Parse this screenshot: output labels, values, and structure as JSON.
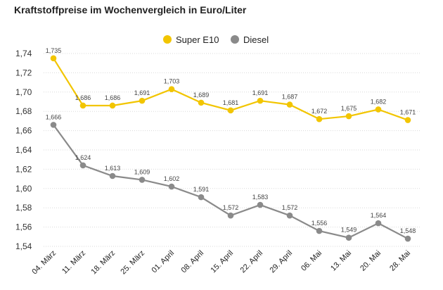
{
  "chart_data": {
    "type": "line",
    "title": "Kraftstoffpreise im Wochenvergleich in Euro/Liter",
    "categories": [
      "04. März",
      "11. März",
      "18. März",
      "25. März",
      "01. April",
      "08. April",
      "15. April",
      "22. April",
      "29. April",
      "06. Mai",
      "13. Mai",
      "20. Mai",
      "28. Mai"
    ],
    "series": [
      {
        "name": "Super E10",
        "color": "#f2c500",
        "values": [
          1.735,
          1.686,
          1.686,
          1.691,
          1.703,
          1.689,
          1.681,
          1.691,
          1.687,
          1.672,
          1.675,
          1.682,
          1.671
        ],
        "labels": [
          "1,735",
          "1,686",
          "1,686",
          "1,691",
          "1,703",
          "1,689",
          "1,681",
          "1,691",
          "1,687",
          "1,672",
          "1,675",
          "1,682",
          "1,671"
        ]
      },
      {
        "name": "Diesel",
        "color": "#8a8a8a",
        "values": [
          1.666,
          1.624,
          1.613,
          1.609,
          1.602,
          1.591,
          1.572,
          1.583,
          1.572,
          1.556,
          1.549,
          1.564,
          1.548
        ],
        "labels": [
          "1,666",
          "1,624",
          "1,613",
          "1,609",
          "1,602",
          "1,591",
          "1,572",
          "1,583",
          "1,572",
          "1,556",
          "1,549",
          "1,564",
          "1,548"
        ]
      }
    ],
    "yticks": [
      1.54,
      1.56,
      1.58,
      1.6,
      1.62,
      1.64,
      1.66,
      1.68,
      1.7,
      1.72,
      1.74
    ],
    "ytick_labels": [
      "1,54",
      "1,56",
      "1,58",
      "1,60",
      "1,62",
      "1,64",
      "1,66",
      "1,68",
      "1,70",
      "1,72",
      "1,74"
    ],
    "ylim": [
      1.54,
      1.74
    ],
    "grid": true,
    "legend_position": "top-center"
  }
}
